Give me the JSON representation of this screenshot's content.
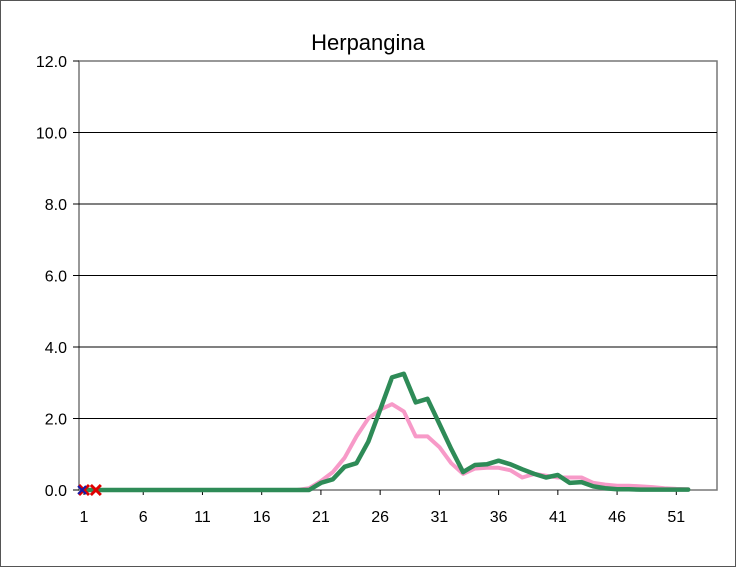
{
  "chart_data": {
    "type": "line",
    "title": "Herpangina",
    "xlabel": "",
    "ylabel": "",
    "ylim": [
      0,
      12
    ],
    "xlim": [
      1,
      53
    ],
    "yticks": [
      "0.0",
      "2.0",
      "4.0",
      "6.0",
      "8.0",
      "10.0",
      "12.0"
    ],
    "xticks": [
      "1",
      "6",
      "11",
      "16",
      "21",
      "26",
      "31",
      "36",
      "41",
      "46",
      "51"
    ],
    "grid": "horizontal",
    "legend": "none",
    "series": [
      {
        "color": "#f79ac8",
        "x": [
          1,
          2,
          3,
          4,
          5,
          6,
          7,
          8,
          9,
          10,
          11,
          12,
          13,
          14,
          15,
          16,
          17,
          18,
          19,
          20,
          21,
          22,
          23,
          24,
          25,
          26,
          27,
          28,
          29,
          30,
          31,
          32,
          33,
          34,
          35,
          36,
          37,
          38,
          39,
          40,
          41,
          42,
          43,
          44,
          45,
          46,
          47,
          48,
          49,
          50,
          51,
          52
        ],
        "values": [
          0,
          0,
          0,
          0,
          0,
          0,
          0,
          0,
          0,
          0,
          0,
          0,
          0,
          0,
          0,
          0,
          0,
          0,
          0,
          0.05,
          0.25,
          0.5,
          0.9,
          1.5,
          2.0,
          2.25,
          2.4,
          2.2,
          1.5,
          1.5,
          1.2,
          0.75,
          0.45,
          0.6,
          0.62,
          0.62,
          0.55,
          0.35,
          0.45,
          0.4,
          0.35,
          0.35,
          0.35,
          0.2,
          0.15,
          0.12,
          0.12,
          0.1,
          0.08,
          0.05,
          0.03,
          0.02
        ]
      },
      {
        "color": "#2e8b57",
        "x": [
          1,
          2,
          3,
          4,
          5,
          6,
          7,
          8,
          9,
          10,
          11,
          12,
          13,
          14,
          15,
          16,
          17,
          18,
          19,
          20,
          21,
          22,
          23,
          24,
          25,
          26,
          27,
          28,
          29,
          30,
          31,
          32,
          33,
          34,
          35,
          36,
          37,
          38,
          39,
          40,
          41,
          42,
          43,
          44,
          45,
          46,
          47,
          48,
          49,
          50,
          51,
          52
        ],
        "values": [
          0,
          0,
          0,
          0,
          0,
          0,
          0,
          0,
          0,
          0,
          0,
          0,
          0,
          0,
          0,
          0,
          0,
          0,
          0,
          0,
          0.2,
          0.3,
          0.65,
          0.75,
          1.35,
          2.25,
          3.15,
          3.25,
          2.45,
          2.55,
          1.85,
          1.15,
          0.5,
          0.7,
          0.72,
          0.82,
          0.72,
          0.58,
          0.45,
          0.35,
          0.42,
          0.2,
          0.22,
          0.1,
          0.05,
          0.02,
          0.02,
          0.01,
          0.01,
          0.01,
          0.01,
          0.01
        ]
      },
      {
        "color": "#e00000",
        "style": "markers-x",
        "x": [
          1,
          2
        ],
        "values": [
          0,
          0
        ]
      }
    ]
  }
}
